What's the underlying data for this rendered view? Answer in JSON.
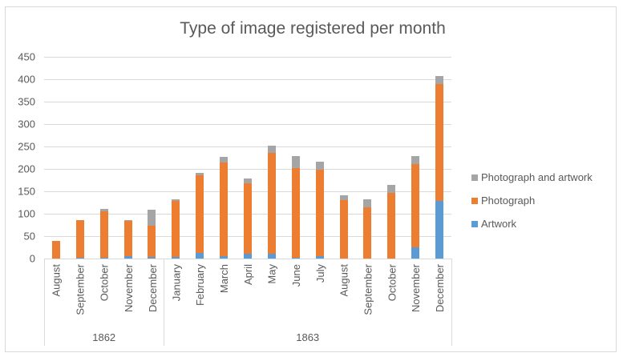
{
  "chart_data": {
    "type": "bar",
    "stacked": true,
    "title": "Type of image registered per month",
    "xlabel": "",
    "ylabel": "",
    "ylim": [
      0,
      450
    ],
    "yticks": [
      0,
      50,
      100,
      150,
      200,
      250,
      300,
      350,
      400,
      450
    ],
    "grid": true,
    "legend_position": "right",
    "categories": [
      "August",
      "September",
      "October",
      "November",
      "December",
      "January",
      "February",
      "March",
      "April",
      "May",
      "June",
      "July",
      "August",
      "September",
      "October",
      "November",
      "December"
    ],
    "category_groups": [
      {
        "label": "1862",
        "count": 5
      },
      {
        "label": "1863",
        "count": 12
      }
    ],
    "series": [
      {
        "name": "Artwork",
        "color": "#5b9bd5",
        "values": [
          0,
          2,
          1,
          6,
          4,
          4,
          13,
          6,
          10,
          10,
          1,
          6,
          0,
          0,
          0,
          25,
          129
        ]
      },
      {
        "name": "Photograph",
        "color": "#ed7d31",
        "values": [
          40,
          83,
          105,
          79,
          70,
          124,
          172,
          209,
          157,
          225,
          200,
          192,
          130,
          114,
          147,
          186,
          260
        ]
      },
      {
        "name": "Photograph and artwork",
        "color": "#a5a5a5",
        "values": [
          0,
          0,
          4,
          1,
          35,
          5,
          6,
          12,
          12,
          17,
          28,
          18,
          11,
          19,
          17,
          18,
          18
        ]
      }
    ],
    "legend_order": [
      "Photograph and artwork",
      "Photograph",
      "Artwork"
    ]
  }
}
